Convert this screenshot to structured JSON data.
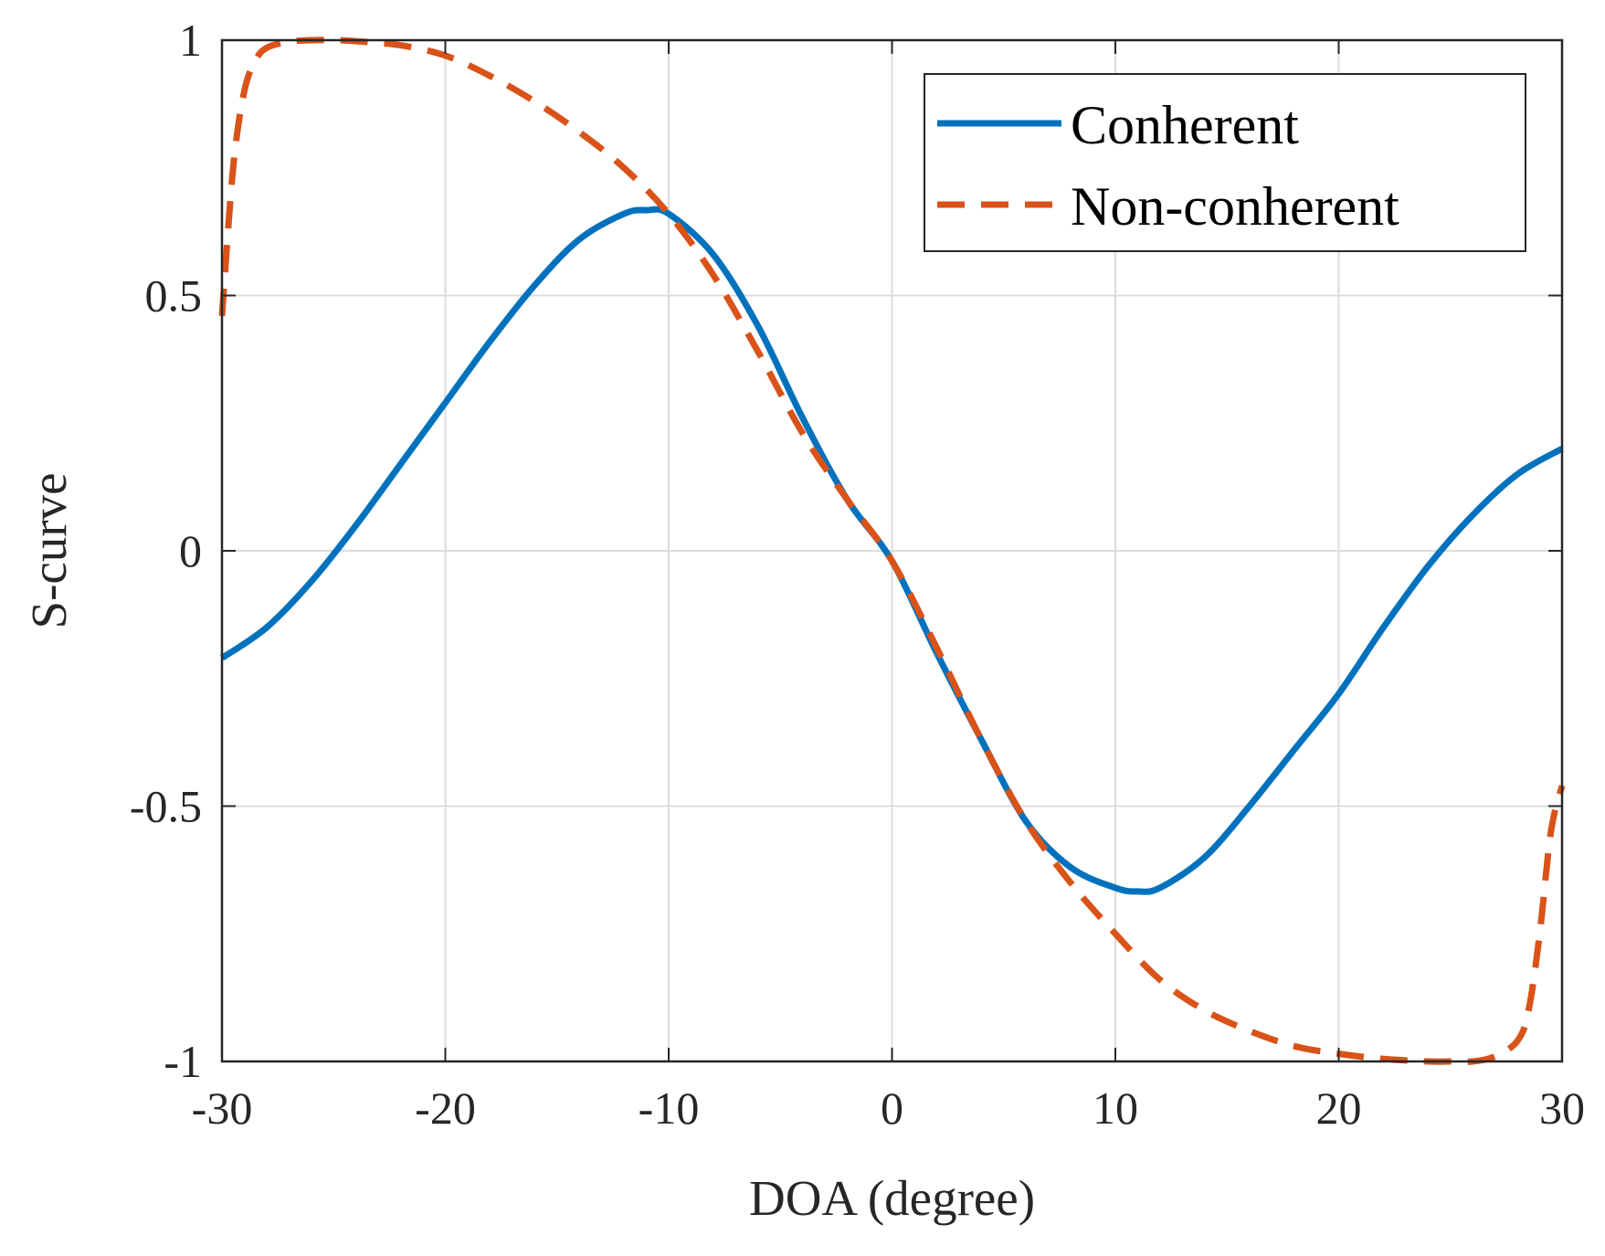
{
  "chart_data": {
    "type": "line",
    "title": "",
    "xlabel": "DOA (degree)",
    "ylabel": "S-curve",
    "xlim": [
      -30,
      30
    ],
    "ylim": [
      -1,
      1
    ],
    "grid": true,
    "legend_position": "top-right",
    "xticks": [
      -30,
      -20,
      -10,
      0,
      10,
      20,
      30
    ],
    "xtick_labels": [
      "-30",
      "-20",
      "-10",
      "0",
      "10",
      "20",
      "30"
    ],
    "yticks": [
      -1,
      -0.5,
      0,
      0.5,
      1
    ],
    "ytick_labels": [
      "-1",
      "-0.5",
      "0",
      "0.5",
      "1"
    ],
    "series": [
      {
        "name": "Conherent",
        "color": "#0072BD",
        "style": "solid",
        "x": [
          -30,
          -28,
          -26,
          -24,
          -22,
          -20,
          -18,
          -16,
          -14,
          -12,
          -11,
          -10,
          -8,
          -6,
          -4,
          -2,
          0,
          2,
          4,
          6,
          8,
          10,
          11,
          12,
          14,
          16,
          18,
          20,
          22,
          24,
          26,
          28,
          30
        ],
        "y": [
          -0.21,
          -0.15,
          -0.06,
          0.05,
          0.17,
          0.29,
          0.41,
          0.52,
          0.61,
          0.66,
          0.667,
          0.66,
          0.58,
          0.44,
          0.26,
          0.1,
          -0.02,
          -0.2,
          -0.37,
          -0.53,
          -0.62,
          -0.66,
          -0.667,
          -0.66,
          -0.6,
          -0.5,
          -0.39,
          -0.28,
          -0.15,
          -0.03,
          0.07,
          0.15,
          0.2
        ]
      },
      {
        "name": "Non-conherent",
        "color": "#D95319",
        "style": "dashed",
        "x": [
          -30,
          -29.5,
          -29,
          -28.5,
          -28,
          -27,
          -26,
          -25,
          -24,
          -22,
          -20,
          -18,
          -16,
          -14,
          -12,
          -10,
          -8,
          -6,
          -4,
          -2,
          0,
          2,
          4,
          6,
          8,
          10,
          12,
          14,
          16,
          18,
          20,
          22,
          24,
          25,
          26,
          27,
          28,
          28.5,
          29,
          29.5,
          30
        ],
        "y": [
          0.46,
          0.75,
          0.9,
          0.96,
          0.985,
          0.997,
          1.0,
          1.0,
          0.998,
          0.99,
          0.97,
          0.93,
          0.88,
          0.82,
          0.75,
          0.66,
          0.54,
          0.39,
          0.23,
          0.1,
          -0.02,
          -0.19,
          -0.37,
          -0.53,
          -0.65,
          -0.75,
          -0.84,
          -0.9,
          -0.94,
          -0.97,
          -0.985,
          -0.995,
          -1.0,
          -1.0,
          -1.0,
          -0.99,
          -0.96,
          -0.9,
          -0.75,
          -0.55,
          -0.46
        ]
      }
    ]
  }
}
